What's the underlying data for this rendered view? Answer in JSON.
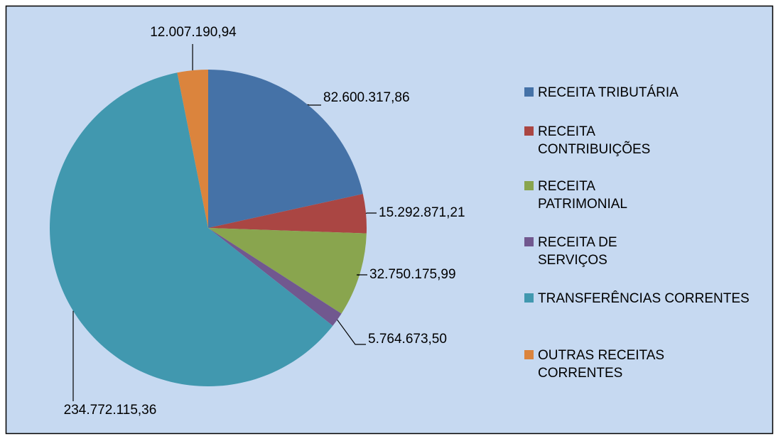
{
  "chart_data": {
    "type": "pie",
    "categories": [
      "RECEITA TRIBUTÁRIA",
      "RECEITA CONTRIBUIÇÕES",
      "RECEITA PATRIMONIAL",
      "RECEITA DE SERVIÇOS",
      "TRANSFERÊNCIAS CORRENTES",
      "OUTRAS RECEITAS CORRENTES"
    ],
    "values": [
      82600317.86,
      15292871.21,
      32750175.99,
      5764673.5,
      234772115.36,
      12007190.94
    ],
    "value_labels": [
      "82.600.317,86",
      "15.292.871,21",
      "32.750.175,99",
      "5.764.673,50",
      "234.772.115,36",
      "12.007.190,94"
    ],
    "colors": [
      "#4572a7",
      "#aa4643",
      "#89a54e",
      "#71588f",
      "#4198af",
      "#db843d"
    ],
    "legend": "right"
  }
}
